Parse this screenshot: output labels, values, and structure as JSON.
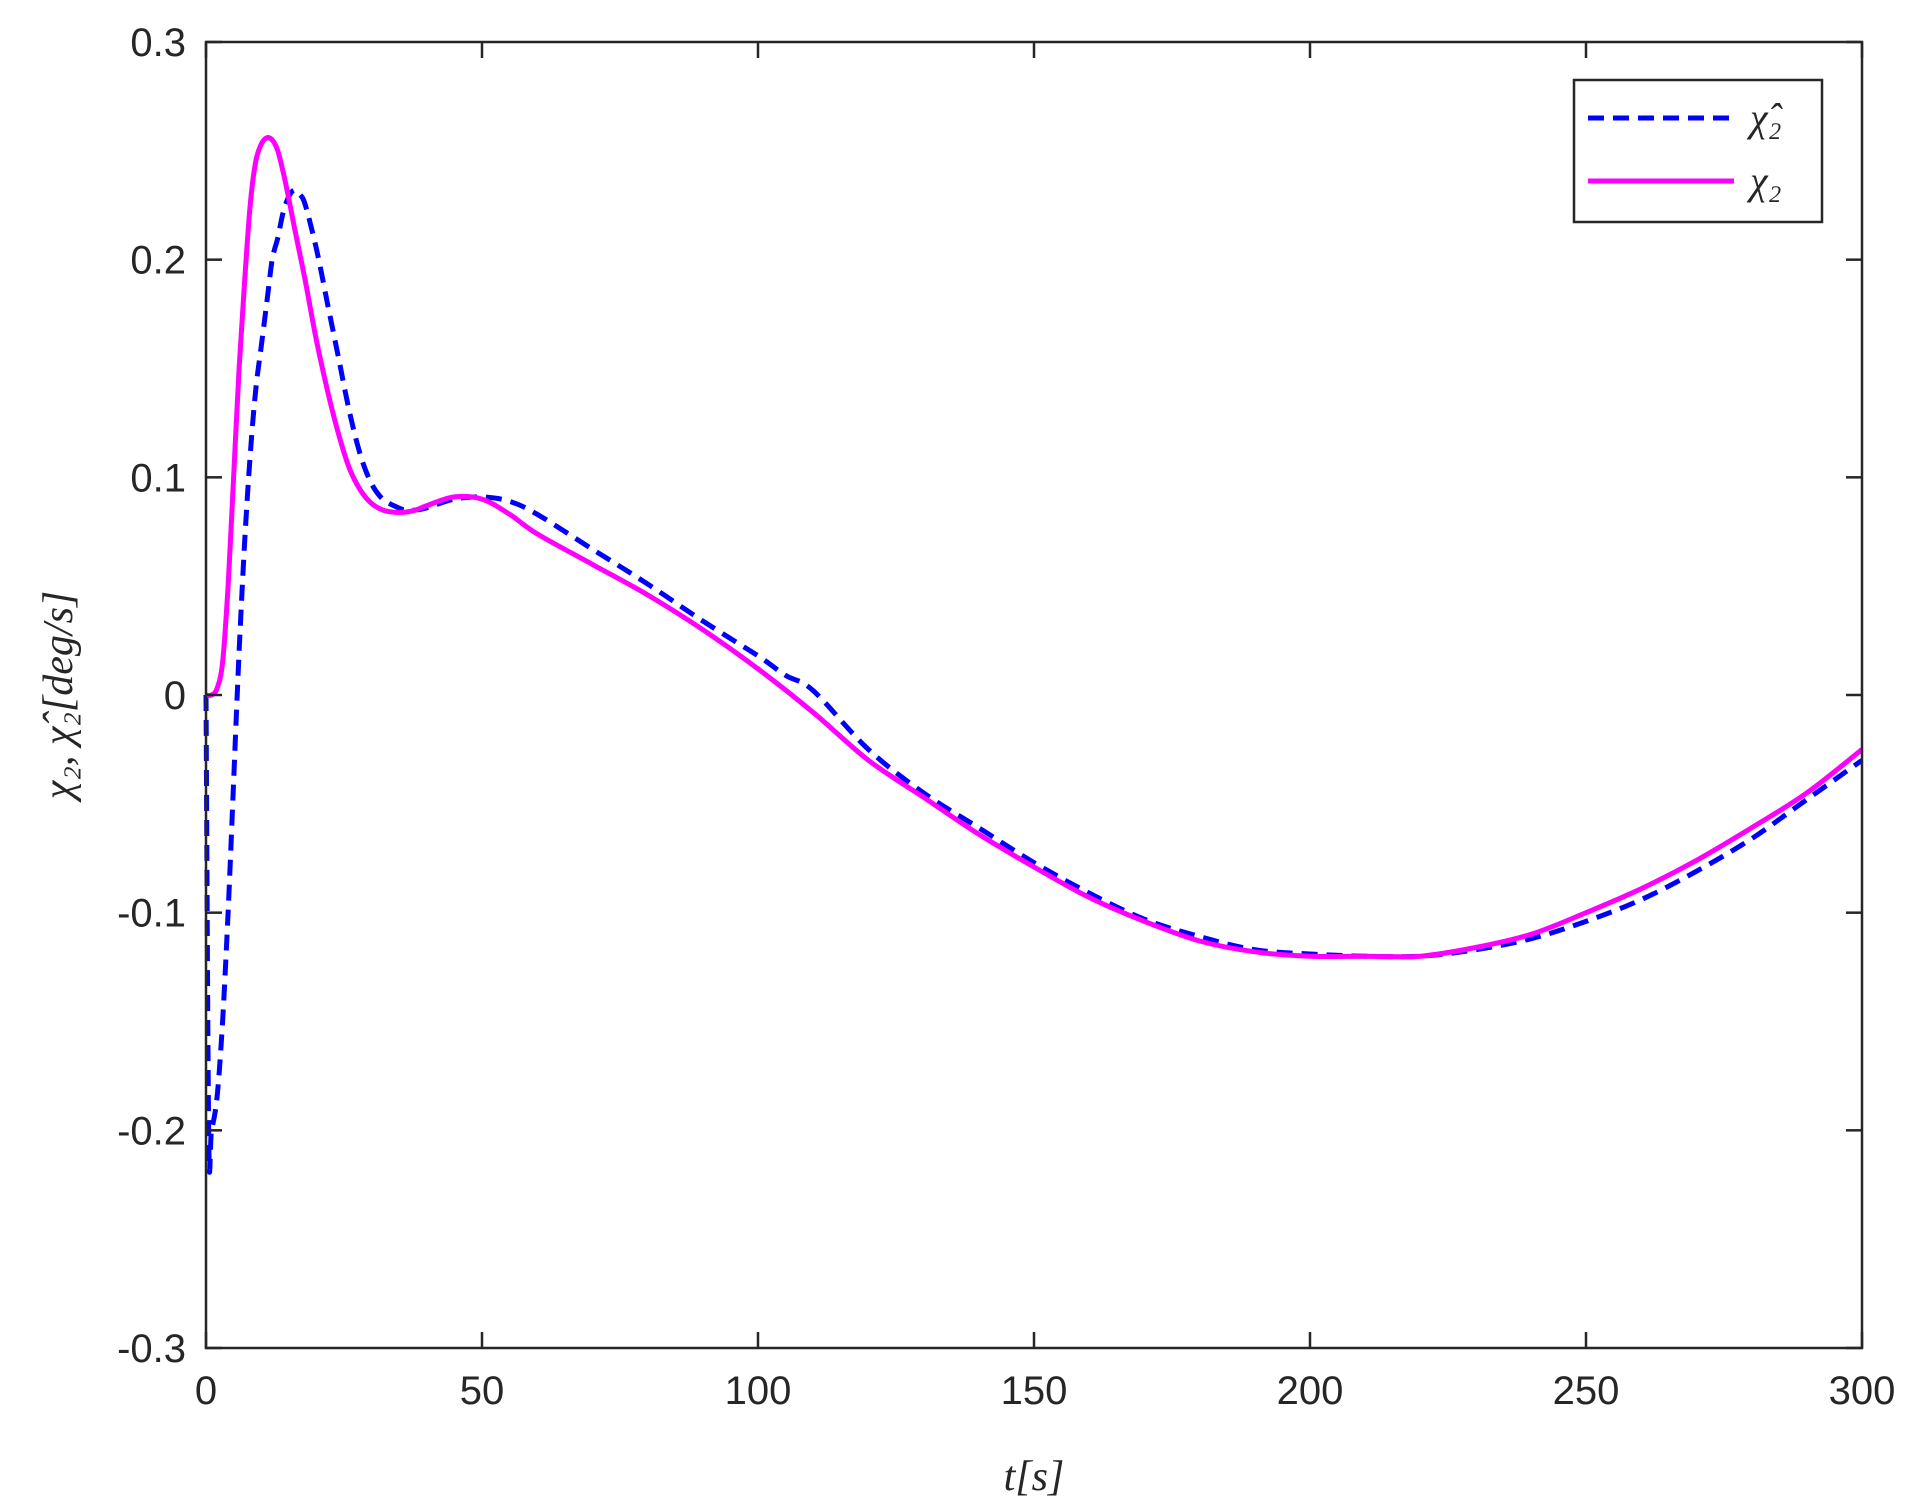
{
  "chart_data": {
    "type": "line",
    "xlabel": "t[s]",
    "ylabel": "χ₂, χ̂₂[deg/s]",
    "xlim": [
      0,
      300
    ],
    "ylim": [
      -0.3,
      0.3
    ],
    "xticks": [
      0,
      50,
      100,
      150,
      200,
      250,
      300
    ],
    "xtick_labels": [
      "0",
      "50",
      "100",
      "150",
      "200",
      "250",
      "300"
    ],
    "yticks": [
      -0.3,
      -0.2,
      -0.1,
      0,
      0.1,
      0.2,
      0.3
    ],
    "ytick_labels": [
      "-0.3",
      "-0.2",
      "-0.1",
      "0",
      "0.1",
      "0.2",
      "0.3"
    ],
    "grid": false,
    "legend_position": "top-right",
    "series": [
      {
        "name": "χ̂₂",
        "color": "#0000ff",
        "style": "dashed",
        "x": [
          0,
          0.5,
          1,
          2,
          3,
          4,
          5,
          6,
          7,
          8,
          9,
          10,
          11,
          12,
          13,
          14,
          15,
          16,
          17,
          18,
          20,
          22,
          24,
          26,
          28,
          30,
          32,
          34,
          36,
          38,
          40,
          45,
          50,
          55,
          60,
          70,
          80,
          90,
          100,
          105,
          110,
          120,
          130,
          140,
          150,
          160,
          170,
          180,
          190,
          200,
          210,
          220,
          230,
          240,
          250,
          260,
          270,
          280,
          290,
          300
        ],
        "y": [
          0,
          -0.205,
          -0.2,
          -0.185,
          -0.15,
          -0.1,
          -0.04,
          0.02,
          0.07,
          0.11,
          0.14,
          0.16,
          0.18,
          0.2,
          0.21,
          0.222,
          0.229,
          0.232,
          0.23,
          0.225,
          0.205,
          0.18,
          0.155,
          0.13,
          0.11,
          0.097,
          0.09,
          0.087,
          0.085,
          0.085,
          0.086,
          0.09,
          0.091,
          0.089,
          0.083,
          0.067,
          0.051,
          0.034,
          0.018,
          0.009,
          0.002,
          -0.025,
          -0.045,
          -0.061,
          -0.077,
          -0.091,
          -0.103,
          -0.111,
          -0.117,
          -0.119,
          -0.12,
          -0.12,
          -0.117,
          -0.112,
          -0.104,
          -0.094,
          -0.081,
          -0.066,
          -0.048,
          -0.03
        ]
      },
      {
        "name": "χ₂",
        "color": "#ff00ff",
        "style": "solid",
        "x": [
          0,
          1,
          2,
          3,
          4,
          5,
          6,
          7,
          8,
          9,
          10,
          11,
          12,
          13,
          14,
          15,
          16,
          18,
          20,
          22,
          24,
          26,
          28,
          30,
          32,
          34,
          36,
          38,
          40,
          45,
          50,
          55,
          60,
          70,
          80,
          90,
          100,
          110,
          120,
          130,
          140,
          150,
          160,
          170,
          180,
          190,
          200,
          210,
          220,
          230,
          240,
          250,
          260,
          270,
          280,
          290,
          300
        ],
        "y": [
          0,
          0,
          0.003,
          0.015,
          0.05,
          0.1,
          0.15,
          0.19,
          0.225,
          0.245,
          0.253,
          0.256,
          0.255,
          0.25,
          0.24,
          0.228,
          0.215,
          0.19,
          0.163,
          0.14,
          0.12,
          0.104,
          0.094,
          0.088,
          0.085,
          0.084,
          0.084,
          0.085,
          0.087,
          0.091,
          0.09,
          0.083,
          0.074,
          0.06,
          0.046,
          0.03,
          0.012,
          -0.008,
          -0.03,
          -0.047,
          -0.064,
          -0.079,
          -0.093,
          -0.104,
          -0.113,
          -0.118,
          -0.12,
          -0.12,
          -0.12,
          -0.116,
          -0.11,
          -0.1,
          -0.089,
          -0.076,
          -0.061,
          -0.045,
          -0.025
        ]
      }
    ]
  }
}
